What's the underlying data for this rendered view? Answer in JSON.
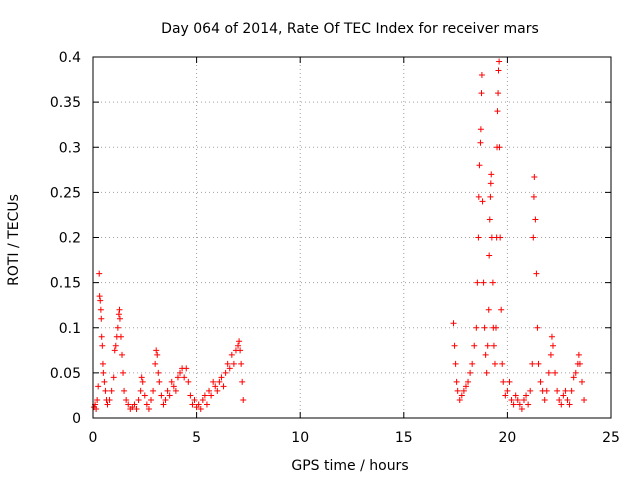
{
  "chart_data": {
    "type": "scatter",
    "title": "Day 064 of 2014, Rate Of TEC Index for receiver mars",
    "xlabel": "GPS time / hours",
    "ylabel": "ROTI / TECUs",
    "xlim": [
      0,
      25
    ],
    "ylim": [
      0,
      0.4
    ],
    "grid": true,
    "marker": "plus",
    "color": "#ff0000",
    "x_ticks": [
      0,
      5,
      10,
      15,
      20,
      25
    ],
    "x_tick_labels": [
      "0",
      "5",
      "10",
      "15",
      "20",
      "25"
    ],
    "y_ticks": [
      0,
      0.05,
      0.1,
      0.15,
      0.2,
      0.25,
      0.3,
      0.35,
      0.4
    ],
    "y_tick_labels": [
      "0",
      "0.05",
      "0.1",
      "0.15",
      "0.2",
      "0.25",
      "0.3",
      "0.35",
      "0.4"
    ],
    "series": [
      {
        "name": "ROTI",
        "points": [
          [
            0.05,
            0.012
          ],
          [
            0.1,
            0.015
          ],
          [
            0.15,
            0.01
          ],
          [
            0.2,
            0.02
          ],
          [
            0.25,
            0.035
          ],
          [
            0.3,
            0.16
          ],
          [
            0.32,
            0.135
          ],
          [
            0.35,
            0.13
          ],
          [
            0.38,
            0.12
          ],
          [
            0.4,
            0.11
          ],
          [
            0.42,
            0.09
          ],
          [
            0.45,
            0.08
          ],
          [
            0.48,
            0.06
          ],
          [
            0.5,
            0.05
          ],
          [
            0.55,
            0.04
          ],
          [
            0.6,
            0.03
          ],
          [
            0.65,
            0.02
          ],
          [
            0.7,
            0.015
          ],
          [
            0.8,
            0.02
          ],
          [
            0.9,
            0.03
          ],
          [
            1.0,
            0.045
          ],
          [
            1.05,
            0.075
          ],
          [
            1.1,
            0.08
          ],
          [
            1.15,
            0.09
          ],
          [
            1.2,
            0.1
          ],
          [
            1.25,
            0.115
          ],
          [
            1.28,
            0.12
          ],
          [
            1.3,
            0.11
          ],
          [
            1.35,
            0.09
          ],
          [
            1.4,
            0.07
          ],
          [
            1.45,
            0.05
          ],
          [
            1.5,
            0.03
          ],
          [
            1.6,
            0.02
          ],
          [
            1.7,
            0.015
          ],
          [
            1.8,
            0.01
          ],
          [
            1.9,
            0.012
          ],
          [
            2.0,
            0.015
          ],
          [
            2.1,
            0.01
          ],
          [
            2.2,
            0.02
          ],
          [
            2.3,
            0.03
          ],
          [
            2.35,
            0.045
          ],
          [
            2.4,
            0.04
          ],
          [
            2.5,
            0.025
          ],
          [
            2.6,
            0.015
          ],
          [
            2.7,
            0.01
          ],
          [
            2.8,
            0.02
          ],
          [
            2.9,
            0.03
          ],
          [
            3.0,
            0.06
          ],
          [
            3.05,
            0.075
          ],
          [
            3.1,
            0.07
          ],
          [
            3.15,
            0.05
          ],
          [
            3.2,
            0.04
          ],
          [
            3.3,
            0.025
          ],
          [
            3.4,
            0.015
          ],
          [
            3.5,
            0.02
          ],
          [
            3.6,
            0.03
          ],
          [
            3.7,
            0.025
          ],
          [
            3.8,
            0.04
          ],
          [
            3.9,
            0.035
          ],
          [
            4.0,
            0.03
          ],
          [
            4.1,
            0.045
          ],
          [
            4.2,
            0.05
          ],
          [
            4.3,
            0.055
          ],
          [
            4.4,
            0.045
          ],
          [
            4.5,
            0.055
          ],
          [
            4.6,
            0.04
          ],
          [
            4.7,
            0.025
          ],
          [
            4.8,
            0.015
          ],
          [
            4.9,
            0.02
          ],
          [
            5.0,
            0.012
          ],
          [
            5.1,
            0.015
          ],
          [
            5.2,
            0.01
          ],
          [
            5.3,
            0.02
          ],
          [
            5.4,
            0.025
          ],
          [
            5.5,
            0.015
          ],
          [
            5.6,
            0.03
          ],
          [
            5.7,
            0.025
          ],
          [
            5.8,
            0.04
          ],
          [
            5.9,
            0.035
          ],
          [
            6.0,
            0.03
          ],
          [
            6.1,
            0.04
          ],
          [
            6.2,
            0.045
          ],
          [
            6.3,
            0.035
          ],
          [
            6.4,
            0.05
          ],
          [
            6.5,
            0.06
          ],
          [
            6.6,
            0.055
          ],
          [
            6.7,
            0.07
          ],
          [
            6.8,
            0.06
          ],
          [
            6.9,
            0.075
          ],
          [
            7.0,
            0.08
          ],
          [
            7.05,
            0.085
          ],
          [
            7.1,
            0.075
          ],
          [
            7.15,
            0.06
          ],
          [
            7.2,
            0.04
          ],
          [
            7.25,
            0.02
          ],
          [
            17.4,
            0.105
          ],
          [
            17.45,
            0.08
          ],
          [
            17.5,
            0.06
          ],
          [
            17.55,
            0.04
          ],
          [
            17.6,
            0.03
          ],
          [
            17.7,
            0.02
          ],
          [
            17.8,
            0.025
          ],
          [
            17.9,
            0.03
          ],
          [
            18.0,
            0.035
          ],
          [
            18.1,
            0.04
          ],
          [
            18.2,
            0.05
          ],
          [
            18.3,
            0.06
          ],
          [
            18.4,
            0.08
          ],
          [
            18.5,
            0.1
          ],
          [
            18.55,
            0.15
          ],
          [
            18.6,
            0.2
          ],
          [
            18.62,
            0.245
          ],
          [
            18.65,
            0.28
          ],
          [
            18.7,
            0.305
          ],
          [
            18.72,
            0.32
          ],
          [
            18.75,
            0.36
          ],
          [
            18.77,
            0.38
          ],
          [
            18.8,
            0.24
          ],
          [
            18.85,
            0.15
          ],
          [
            18.9,
            0.1
          ],
          [
            18.95,
            0.07
          ],
          [
            19.0,
            0.05
          ],
          [
            19.05,
            0.08
          ],
          [
            19.1,
            0.12
          ],
          [
            19.12,
            0.18
          ],
          [
            19.15,
            0.22
          ],
          [
            19.18,
            0.245
          ],
          [
            19.2,
            0.26
          ],
          [
            19.22,
            0.27
          ],
          [
            19.25,
            0.2
          ],
          [
            19.3,
            0.15
          ],
          [
            19.32,
            0.1
          ],
          [
            19.35,
            0.08
          ],
          [
            19.4,
            0.06
          ],
          [
            19.45,
            0.1
          ],
          [
            19.48,
            0.2
          ],
          [
            19.5,
            0.3
          ],
          [
            19.52,
            0.34
          ],
          [
            19.55,
            0.36
          ],
          [
            19.57,
            0.385
          ],
          [
            19.6,
            0.395
          ],
          [
            19.62,
            0.3
          ],
          [
            19.65,
            0.2
          ],
          [
            19.7,
            0.12
          ],
          [
            19.75,
            0.06
          ],
          [
            19.8,
            0.04
          ],
          [
            19.9,
            0.025
          ],
          [
            20.0,
            0.03
          ],
          [
            20.1,
            0.04
          ],
          [
            20.2,
            0.02
          ],
          [
            20.3,
            0.015
          ],
          [
            20.4,
            0.025
          ],
          [
            20.5,
            0.02
          ],
          [
            20.6,
            0.015
          ],
          [
            20.7,
            0.01
          ],
          [
            20.8,
            0.02
          ],
          [
            20.9,
            0.025
          ],
          [
            21.0,
            0.015
          ],
          [
            21.1,
            0.03
          ],
          [
            21.2,
            0.06
          ],
          [
            21.25,
            0.2
          ],
          [
            21.28,
            0.245
          ],
          [
            21.3,
            0.267
          ],
          [
            21.35,
            0.22
          ],
          [
            21.4,
            0.16
          ],
          [
            21.45,
            0.1
          ],
          [
            21.5,
            0.06
          ],
          [
            21.6,
            0.04
          ],
          [
            21.7,
            0.03
          ],
          [
            21.8,
            0.02
          ],
          [
            21.9,
            0.03
          ],
          [
            22.0,
            0.05
          ],
          [
            22.1,
            0.07
          ],
          [
            22.15,
            0.09
          ],
          [
            22.2,
            0.08
          ],
          [
            22.3,
            0.05
          ],
          [
            22.4,
            0.03
          ],
          [
            22.5,
            0.02
          ],
          [
            22.6,
            0.015
          ],
          [
            22.7,
            0.025
          ],
          [
            22.8,
            0.03
          ],
          [
            22.9,
            0.02
          ],
          [
            23.0,
            0.015
          ],
          [
            23.1,
            0.03
          ],
          [
            23.2,
            0.045
          ],
          [
            23.3,
            0.05
          ],
          [
            23.4,
            0.06
          ],
          [
            23.45,
            0.07
          ],
          [
            23.5,
            0.06
          ],
          [
            23.6,
            0.04
          ],
          [
            23.7,
            0.02
          ]
        ]
      }
    ]
  }
}
